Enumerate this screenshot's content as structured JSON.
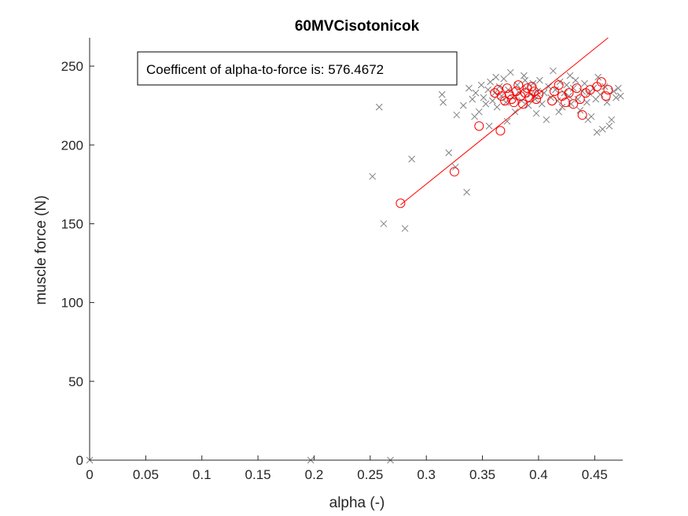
{
  "chart_data": {
    "type": "scatter",
    "title": "60MVCisotonicok",
    "xlabel": "alpha (-)",
    "ylabel": "muscle force (N)",
    "xlim": [
      0,
      0.475
    ],
    "ylim": [
      0,
      268
    ],
    "xticks": [
      0,
      0.05,
      0.1,
      0.15,
      0.2,
      0.25,
      0.3,
      0.35,
      0.4,
      0.45
    ],
    "xtick_labels": [
      "0",
      "0.05",
      "0.1",
      "0.15",
      "0.2",
      "0.25",
      "0.3",
      "0.35",
      "0.4",
      "0.45"
    ],
    "yticks": [
      0,
      50,
      100,
      150,
      200,
      250
    ],
    "ytick_labels": [
      "0",
      "50",
      "100",
      "150",
      "200",
      "250"
    ],
    "grid": false,
    "annotation": "Coefficent of alpha-to-force is: 576.4672",
    "series": [
      {
        "marker": "x",
        "color": "#808080",
        "points": [
          [
            0.0,
            0
          ],
          [
            0.197,
            0
          ],
          [
            0.268,
            0
          ],
          [
            0.252,
            180
          ],
          [
            0.258,
            224
          ],
          [
            0.262,
            150
          ],
          [
            0.281,
            147
          ],
          [
            0.287,
            191
          ],
          [
            0.32,
            195
          ],
          [
            0.326,
            186
          ],
          [
            0.336,
            170
          ],
          [
            0.314,
            232
          ],
          [
            0.315,
            227
          ],
          [
            0.327,
            219
          ],
          [
            0.333,
            225
          ],
          [
            0.338,
            236
          ],
          [
            0.341,
            229
          ],
          [
            0.344,
            233
          ],
          [
            0.347,
            221
          ],
          [
            0.349,
            238
          ],
          [
            0.351,
            230
          ],
          [
            0.353,
            226
          ],
          [
            0.355,
            235
          ],
          [
            0.357,
            240
          ],
          [
            0.359,
            228
          ],
          [
            0.361,
            233
          ],
          [
            0.363,
            224
          ],
          [
            0.365,
            237
          ],
          [
            0.367,
            231
          ],
          [
            0.369,
            242
          ],
          [
            0.371,
            227
          ],
          [
            0.373,
            235
          ],
          [
            0.375,
            246
          ],
          [
            0.377,
            230
          ],
          [
            0.379,
            221
          ],
          [
            0.381,
            238
          ],
          [
            0.383,
            233
          ],
          [
            0.385,
            228
          ],
          [
            0.387,
            244
          ],
          [
            0.389,
            236
          ],
          [
            0.391,
            225
          ],
          [
            0.393,
            232
          ],
          [
            0.395,
            239
          ],
          [
            0.397,
            229
          ],
          [
            0.399,
            234
          ],
          [
            0.401,
            241
          ],
          [
            0.403,
            226
          ],
          [
            0.405,
            233
          ],
          [
            0.407,
            216
          ],
          [
            0.409,
            237
          ],
          [
            0.411,
            230
          ],
          [
            0.413,
            247
          ],
          [
            0.415,
            235
          ],
          [
            0.417,
            228
          ],
          [
            0.419,
            240
          ],
          [
            0.421,
            224
          ],
          [
            0.423,
            233
          ],
          [
            0.425,
            238
          ],
          [
            0.427,
            231
          ],
          [
            0.429,
            226
          ],
          [
            0.431,
            236
          ],
          [
            0.433,
            241
          ],
          [
            0.435,
            229
          ],
          [
            0.437,
            222
          ],
          [
            0.439,
            234
          ],
          [
            0.441,
            239
          ],
          [
            0.443,
            227
          ],
          [
            0.445,
            233
          ],
          [
            0.447,
            218
          ],
          [
            0.449,
            236
          ],
          [
            0.451,
            229
          ],
          [
            0.453,
            243
          ],
          [
            0.455,
            232
          ],
          [
            0.457,
            210
          ],
          [
            0.459,
            237
          ],
          [
            0.461,
            227
          ],
          [
            0.463,
            212
          ],
          [
            0.465,
            216
          ],
          [
            0.467,
            234
          ],
          [
            0.469,
            230
          ],
          [
            0.471,
            236
          ],
          [
            0.473,
            231
          ],
          [
            0.343,
            218
          ],
          [
            0.356,
            212
          ],
          [
            0.372,
            215
          ],
          [
            0.398,
            220
          ],
          [
            0.418,
            221
          ],
          [
            0.444,
            216
          ],
          [
            0.452,
            208
          ],
          [
            0.362,
            243
          ],
          [
            0.388,
            241
          ],
          [
            0.428,
            244
          ]
        ]
      },
      {
        "marker": "o",
        "color": "#ff0000",
        "points": [
          [
            0.277,
            163
          ],
          [
            0.325,
            183
          ],
          [
            0.347,
            212
          ],
          [
            0.366,
            209
          ],
          [
            0.439,
            219
          ],
          [
            0.361,
            233
          ],
          [
            0.364,
            235
          ],
          [
            0.367,
            231
          ],
          [
            0.37,
            228
          ],
          [
            0.372,
            236
          ],
          [
            0.374,
            232
          ],
          [
            0.376,
            229
          ],
          [
            0.378,
            227
          ],
          [
            0.38,
            234
          ],
          [
            0.382,
            238
          ],
          [
            0.384,
            231
          ],
          [
            0.386,
            226
          ],
          [
            0.388,
            233
          ],
          [
            0.39,
            236
          ],
          [
            0.392,
            230
          ],
          [
            0.394,
            237
          ],
          [
            0.396,
            234
          ],
          [
            0.398,
            229
          ],
          [
            0.4,
            232
          ],
          [
            0.412,
            228
          ],
          [
            0.414,
            234
          ],
          [
            0.418,
            238
          ],
          [
            0.421,
            231
          ],
          [
            0.424,
            227
          ],
          [
            0.427,
            233
          ],
          [
            0.431,
            226
          ],
          [
            0.434,
            236
          ],
          [
            0.437,
            229
          ],
          [
            0.442,
            233
          ],
          [
            0.446,
            235
          ],
          [
            0.452,
            237
          ],
          [
            0.456,
            240
          ],
          [
            0.46,
            231
          ],
          [
            0.462,
            235
          ]
        ]
      }
    ],
    "fit_line": {
      "color": "#ff0000",
      "x": [
        0.277,
        0.462
      ],
      "y": [
        162,
        268
      ]
    }
  }
}
